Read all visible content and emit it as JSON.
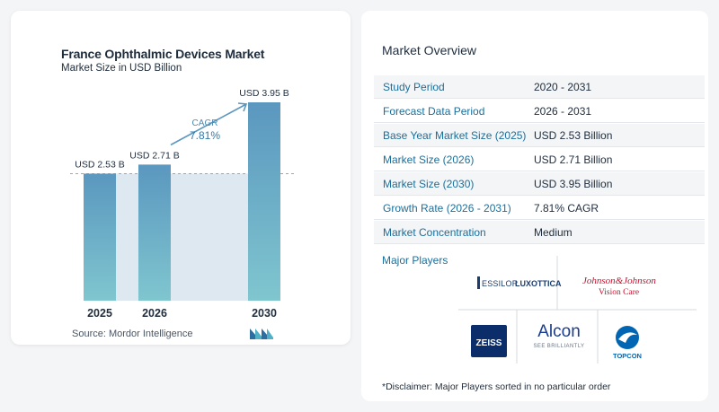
{
  "chart": {
    "title": "France Ophthalmic Devices Market",
    "subtitle": "Market Size in USD Billion",
    "source": "Source:  Mordor Intelligence",
    "cagr_label": "CAGR",
    "cagr_value": "7.81%"
  },
  "chart_data": {
    "type": "bar",
    "title": "France Ophthalmic Devices Market",
    "subtitle": "Market Size in USD Billion",
    "categories": [
      "2025",
      "2026",
      "2030"
    ],
    "values": [
      2.53,
      2.71,
      3.95
    ],
    "value_labels": [
      "USD 2.53 B",
      "USD 2.71 B",
      "USD 3.95 B"
    ],
    "unit": "USD Billion",
    "ylim": [
      0,
      4.2
    ],
    "annotation": "CAGR 7.81%",
    "bar_color": "#5b97bf",
    "bar_color_bottom": "#7fc6cf"
  },
  "overview": {
    "title": "Market Overview",
    "rows": [
      {
        "key": "Study Period",
        "value": "2020 - 2031"
      },
      {
        "key": "Forecast Data Period",
        "value": "2026 - 2031"
      },
      {
        "key": "Base Year Market Size (2025)",
        "value": "USD 2.53 Billion"
      },
      {
        "key": "Market Size (2026)",
        "value": "USD 2.71 Billion"
      },
      {
        "key": "Market Size (2030)",
        "value": "USD 3.95 Billion"
      },
      {
        "key": "Growth Rate (2026 - 2031)",
        "value": "7.81% CAGR"
      },
      {
        "key": "Market Concentration",
        "value": "Medium"
      }
    ],
    "players_title": "Major Players",
    "players": [
      {
        "name": "EssilorLuxottica",
        "text_a": "ESSILOR",
        "text_b": "LUXOTTICA"
      },
      {
        "name": "Johnson & Johnson Vision Care",
        "text_a": "Johnson&Johnson",
        "text_b": "Vision Care"
      },
      {
        "name": "Zeiss",
        "text_a": "ZEISS"
      },
      {
        "name": "Alcon",
        "text_a": "Alcon",
        "text_b": "SEE BRILLIANTLY"
      },
      {
        "name": "Topcon",
        "text_a": "TOPCON"
      }
    ],
    "disclaimer": "*Disclaimer: Major Players sorted in no particular order"
  },
  "colors": {
    "accent": "#1b6f9c",
    "bar_top": "#5b97bf",
    "bar_bottom": "#7fc6cf",
    "band": "#dde8f1",
    "arrow": "#5b97bf"
  }
}
